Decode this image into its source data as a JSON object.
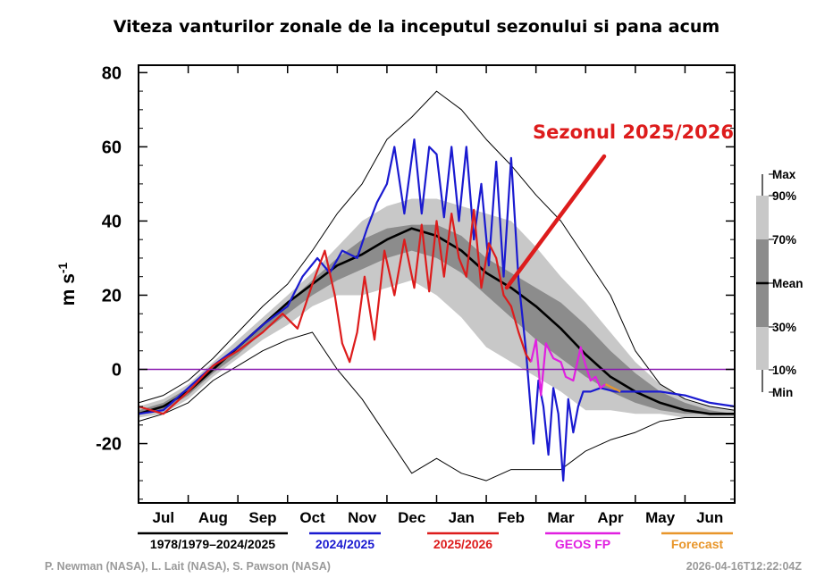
{
  "chart_data": {
    "type": "line",
    "title": "Viteza vanturilor zonale de la inceputul sezonului si pana acum",
    "ylabel": "m s",
    "ylabel_sup": "-1",
    "ylim": [
      -36,
      82
    ],
    "yticks": [
      80,
      60,
      40,
      20,
      0,
      -20
    ],
    "reference_line": 0,
    "x_axis": "months",
    "xlim": [
      0,
      12
    ],
    "months": [
      "Jul",
      "Aug",
      "Sep",
      "Oct",
      "Nov",
      "Dec",
      "Jan",
      "Feb",
      "Mar",
      "Apr",
      "May",
      "Jun"
    ],
    "annotation": "Sezonul 2025/2026",
    "percentile_bar_labels": [
      "Max",
      "90%",
      "70%",
      "Mean",
      "30%",
      "10%",
      "Min"
    ],
    "legend": [
      {
        "label": "1978/1979–2024/2025",
        "color": "#000000"
      },
      {
        "label": "2024/2025",
        "color": "#1a1ad0"
      },
      {
        "label": "2025/2026",
        "color": "#dd1c1c"
      },
      {
        "label": "GEOS FP",
        "color": "#e020e0"
      },
      {
        "label": "Forecast",
        "color": "#e8962a"
      }
    ],
    "climatology": {
      "x": [
        0,
        0.5,
        1,
        1.5,
        2,
        2.5,
        3,
        3.5,
        4,
        4.5,
        5,
        5.5,
        6,
        6.5,
        7,
        7.5,
        8,
        8.5,
        9,
        9.5,
        10,
        10.5,
        11,
        11.5,
        12
      ],
      "max": [
        -9,
        -7,
        -3,
        3,
        10,
        17,
        23,
        32,
        42,
        50,
        62,
        68,
        75,
        70,
        62,
        55,
        47,
        40,
        30,
        20,
        5,
        -4,
        -8,
        -10,
        -11
      ],
      "p90": [
        -10,
        -8,
        -4,
        2,
        8,
        14,
        20,
        26,
        33,
        40,
        44,
        46,
        46,
        44,
        42,
        40,
        33,
        25,
        18,
        10,
        2,
        -4,
        -8,
        -10,
        -11
      ],
      "p70": [
        -11,
        -9,
        -5,
        1,
        6,
        12,
        18,
        24,
        30,
        35,
        38,
        39,
        39,
        36,
        30,
        26,
        22,
        18,
        12,
        5,
        -1,
        -6,
        -9,
        -11,
        -12
      ],
      "mean": [
        -12,
        -10,
        -6,
        0,
        6,
        12,
        18,
        23,
        28,
        31,
        35,
        38,
        36,
        32,
        26,
        22,
        17,
        11,
        4,
        -2,
        -6,
        -9,
        -11,
        -12,
        -12
      ],
      "p30": [
        -12,
        -11,
        -7,
        -1,
        4,
        10,
        15,
        20,
        24,
        27,
        30,
        32,
        30,
        26,
        20,
        14,
        8,
        3,
        -2,
        -6,
        -9,
        -11,
        -12,
        -12,
        -12
      ],
      "p10": [
        -13,
        -12,
        -8,
        -2,
        3,
        8,
        12,
        17,
        20,
        20,
        22,
        24,
        20,
        14,
        6,
        2,
        -2,
        -6,
        -11,
        -11,
        -12,
        -12,
        -13,
        -13,
        -13
      ],
      "min": [
        -14,
        -12,
        -9,
        -3,
        1,
        5,
        8,
        10,
        0,
        -8,
        -18,
        -28,
        -24,
        -28,
        -30,
        -27,
        -27,
        -27,
        -22,
        -19,
        -17,
        -14,
        -13,
        -13,
        -13
      ]
    },
    "series": [
      {
        "name": "2024/2025",
        "color": "#1a1ad0",
        "x": [
          0,
          0.5,
          1,
          1.5,
          2,
          2.5,
          3,
          3.3,
          3.6,
          3.85,
          4.1,
          4.4,
          4.6,
          4.8,
          5.0,
          5.15,
          5.35,
          5.55,
          5.7,
          5.85,
          6.0,
          6.15,
          6.3,
          6.45,
          6.6,
          6.75,
          6.9,
          7.05,
          7.2,
          7.35,
          7.5,
          7.65,
          7.8,
          7.95,
          8.05,
          8.15,
          8.25,
          8.35,
          8.45,
          8.55,
          8.65,
          8.75,
          8.85,
          8.95,
          9.1,
          9.3,
          9.6,
          10,
          10.5,
          11,
          11.5,
          12
        ],
        "y": [
          -12,
          -11,
          -5,
          1,
          6,
          12,
          17,
          25,
          30,
          26,
          32,
          30,
          38,
          45,
          50,
          60,
          42,
          62,
          42,
          60,
          58,
          41,
          60,
          40,
          60,
          35,
          50,
          28,
          56,
          25,
          57,
          24,
          5,
          -20,
          -3,
          -10,
          -23,
          -5,
          -12,
          -30,
          -8,
          -17,
          -10,
          -6,
          -6,
          -5,
          -6,
          -6,
          -6,
          -7,
          -9,
          -10
        ]
      },
      {
        "name": "2025/2026",
        "color": "#dd1c1c",
        "x": [
          0,
          0.5,
          1,
          1.5,
          2,
          2.5,
          2.9,
          3.2,
          3.5,
          3.75,
          3.95,
          4.1,
          4.25,
          4.4,
          4.55,
          4.75,
          4.95,
          5.15,
          5.35,
          5.55,
          5.7,
          5.85,
          6.0,
          6.15,
          6.3,
          6.45,
          6.6,
          6.75,
          6.9,
          7.05,
          7.2,
          7.35,
          7.5,
          7.65,
          7.8,
          7.9
        ],
        "y": [
          -10,
          -12,
          -6,
          1,
          5,
          10,
          15,
          11,
          23,
          32,
          20,
          7,
          2,
          10,
          25,
          8,
          32,
          20,
          35,
          22,
          39,
          21,
          40,
          25,
          42,
          30,
          25,
          43,
          22,
          34,
          30,
          20,
          17,
          10,
          4,
          2
        ]
      },
      {
        "name": "GEOS FP",
        "color": "#e020e0",
        "x": [
          7.9,
          8.0,
          8.1,
          8.2,
          8.35,
          8.5,
          8.6,
          8.75,
          8.9,
          9.0,
          9.1,
          9.2,
          9.3,
          9.4
        ],
        "y": [
          2,
          8,
          -7,
          7,
          3,
          2,
          -2,
          -3,
          6,
          1,
          -3,
          -2,
          -5,
          -4
        ]
      },
      {
        "name": "Forecast",
        "color": "#e8962a",
        "x": [
          9.4,
          9.55,
          9.7
        ],
        "y": [
          -4,
          -5,
          -6
        ]
      }
    ],
    "credits_left": "P. Newman (NASA), L. Lait (NASA), S. Pawson (NASA)",
    "timestamp": "2026-04-16T12:22:04Z"
  }
}
